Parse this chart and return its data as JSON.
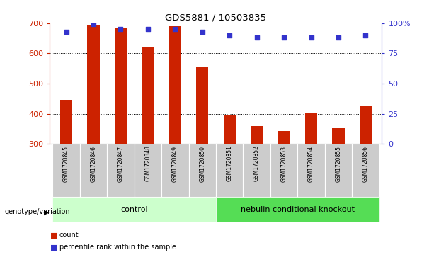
{
  "title": "GDS5881 / 10503835",
  "samples": [
    "GSM1720845",
    "GSM1720846",
    "GSM1720847",
    "GSM1720848",
    "GSM1720849",
    "GSM1720850",
    "GSM1720851",
    "GSM1720852",
    "GSM1720853",
    "GSM1720854",
    "GSM1720855",
    "GSM1720856"
  ],
  "counts": [
    445,
    693,
    685,
    620,
    690,
    555,
    395,
    360,
    342,
    403,
    352,
    425
  ],
  "percentiles": [
    93,
    99,
    95,
    95,
    95,
    93,
    90,
    88,
    88,
    88,
    88,
    90
  ],
  "bar_bottom": 300,
  "ylim_left": [
    300,
    700
  ],
  "ylim_right": [
    0,
    100
  ],
  "yticks_left": [
    300,
    400,
    500,
    600,
    700
  ],
  "yticks_right": [
    0,
    25,
    50,
    75,
    100
  ],
  "ytick_right_labels": [
    "0",
    "25",
    "50",
    "75",
    "100%"
  ],
  "grid_vals": [
    400,
    500,
    600
  ],
  "bar_color": "#cc2200",
  "dot_color": "#3333cc",
  "n_control": 6,
  "n_knockout": 6,
  "control_label": "control",
  "knockout_label": "nebulin conditional knockout",
  "xgroup_label": "genotype/variation",
  "legend_count_label": "count",
  "legend_percentile_label": "percentile rank within the sample",
  "control_bg": "#ccffcc",
  "knockout_bg": "#55dd55",
  "tick_area_bg": "#cccccc",
  "tick_area_edge": "#aaaaaa",
  "fig_bg": "#ffffff",
  "right_axis_color": "#3333cc",
  "left_axis_color": "#cc2200"
}
